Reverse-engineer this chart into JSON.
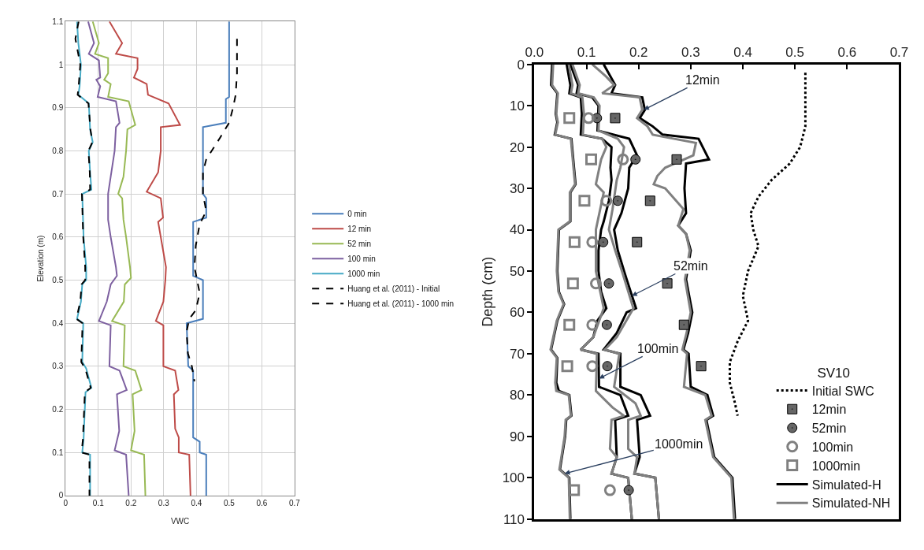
{
  "chart_data": [
    {
      "type": "line",
      "xlabel": "VWC",
      "ylabel": "Elevation (m)",
      "xlim": [
        0,
        0.7
      ],
      "xticks": [
        0,
        0.1,
        0.2,
        0.3,
        0.4,
        0.5,
        0.6,
        0.7
      ],
      "ylim": [
        0,
        1.1
      ],
      "yticks": [
        0,
        0.1,
        0.2,
        0.3,
        0.4,
        0.5,
        0.6,
        0.7,
        0.8,
        0.9,
        1,
        1.1
      ],
      "grid": true,
      "legend": "right",
      "series": [
        {
          "name": "0 min",
          "color": "#4a7ebb",
          "line_style": "solid",
          "x": [
            0.5,
            0.5,
            0.49,
            0.49,
            0.42,
            0.42,
            0.42,
            0.43,
            0.43,
            0.39,
            0.39,
            0.39,
            0.42,
            0.42,
            0.37,
            0.375,
            0.39,
            0.39,
            0.41,
            0.41,
            0.43,
            0.43
          ],
          "values": [
            1.1,
            0.925,
            0.92,
            0.865,
            0.855,
            0.8,
            0.7,
            0.69,
            0.645,
            0.635,
            0.52,
            0.51,
            0.5,
            0.41,
            0.4,
            0.3,
            0.29,
            0.135,
            0.125,
            0.1,
            0.095,
            0
          ]
        },
        {
          "name": "12 min",
          "color": "#be4b48",
          "line_style": "solid",
          "x": [
            0.134,
            0.173,
            0.154,
            0.22,
            0.22,
            0.209,
            0.248,
            0.252,
            0.315,
            0.35,
            0.291,
            0.291,
            0.283,
            0.248,
            0.291,
            0.298,
            0.283,
            0.307,
            0.305,
            0.299,
            0.276,
            0.299,
            0.299,
            0.335,
            0.345,
            0.331,
            0.335,
            0.346,
            0.346,
            0.378,
            0.382
          ],
          "values": [
            1.1,
            1.05,
            1.025,
            1.015,
            0.99,
            0.97,
            0.955,
            0.93,
            0.91,
            0.86,
            0.855,
            0.8,
            0.75,
            0.705,
            0.69,
            0.645,
            0.635,
            0.53,
            0.5,
            0.45,
            0.405,
            0.395,
            0.3,
            0.29,
            0.245,
            0.235,
            0.155,
            0.135,
            0.1,
            0.095,
            0
          ]
        },
        {
          "name": "52 min",
          "color": "#98b954",
          "line_style": "solid",
          "x": [
            0.083,
            0.102,
            0.09,
            0.13,
            0.13,
            0.118,
            0.138,
            0.13,
            0.193,
            0.213,
            0.189,
            0.185,
            0.177,
            0.161,
            0.173,
            0.177,
            0.185,
            0.197,
            0.2,
            0.181,
            0.178,
            0.142,
            0.181,
            0.177,
            0.213,
            0.232,
            0.205,
            0.211,
            0.2,
            0.24,
            0.244
          ],
          "values": [
            1.1,
            1.05,
            1.025,
            1.015,
            0.98,
            0.965,
            0.955,
            0.925,
            0.915,
            0.86,
            0.85,
            0.8,
            0.74,
            0.7,
            0.69,
            0.64,
            0.6,
            0.53,
            0.505,
            0.49,
            0.45,
            0.405,
            0.395,
            0.3,
            0.29,
            0.245,
            0.235,
            0.15,
            0.105,
            0.095,
            0
          ]
        },
        {
          "name": "100 min",
          "color": "#7d60a0",
          "line_style": "solid",
          "x": [
            0.069,
            0.087,
            0.071,
            0.102,
            0.106,
            0.094,
            0.106,
            0.098,
            0.154,
            0.165,
            0.154,
            0.15,
            0.138,
            0.13,
            0.13,
            0.138,
            0.154,
            0.157,
            0.138,
            0.126,
            0.102,
            0.138,
            0.134,
            0.165,
            0.187,
            0.157,
            0.164,
            0.15,
            0.185,
            0.193
          ],
          "values": [
            1.1,
            1.05,
            1.025,
            1.01,
            0.97,
            0.965,
            0.95,
            0.925,
            0.915,
            0.865,
            0.855,
            0.8,
            0.74,
            0.7,
            0.64,
            0.6,
            0.53,
            0.51,
            0.49,
            0.45,
            0.405,
            0.395,
            0.3,
            0.29,
            0.245,
            0.235,
            0.15,
            0.105,
            0.095,
            0
          ]
        },
        {
          "name": "1000 min",
          "color": "#46aac5",
          "line_style": "solid",
          "x": [
            0.035,
            0.039,
            0.047,
            0.043,
            0.039,
            0.071,
            0.075,
            0.083,
            0.071,
            0.075,
            0.079,
            0.051,
            0.055,
            0.063,
            0.063,
            0.051,
            0.047,
            0.035,
            0.054,
            0.051,
            0.063,
            0.079,
            0.061,
            0.055,
            0.051,
            0.075,
            0.075
          ],
          "values": [
            1.1,
            1.05,
            1.0,
            0.95,
            0.93,
            0.91,
            0.85,
            0.82,
            0.8,
            0.75,
            0.71,
            0.7,
            0.6,
            0.53,
            0.5,
            0.49,
            0.45,
            0.41,
            0.4,
            0.31,
            0.295,
            0.25,
            0.24,
            0.13,
            0.1,
            0.095,
            0
          ]
        },
        {
          "name": "Huang et al. (2011) - Initial",
          "color": "#000000",
          "line_style": "dashed",
          "x": [
            0.524,
            0.524,
            0.52,
            0.512,
            0.5,
            0.472,
            0.43,
            0.42,
            0.42,
            0.43,
            0.41,
            0.398,
            0.394,
            0.402,
            0.41,
            0.398,
            0.378,
            0.37,
            0.374,
            0.386,
            0.394
          ],
          "values": [
            1.06,
            0.98,
            0.93,
            0.9,
            0.865,
            0.83,
            0.78,
            0.75,
            0.7,
            0.66,
            0.63,
            0.58,
            0.53,
            0.5,
            0.47,
            0.43,
            0.41,
            0.38,
            0.33,
            0.3,
            0.265
          ]
        },
        {
          "name": "Huang et al. (2011) - 1000 min",
          "color": "#000000",
          "line_style": "dashed",
          "x": [
            0.04,
            0.03,
            0.045,
            0.04,
            0.037,
            0.07,
            0.076,
            0.082,
            0.07,
            0.074,
            0.075,
            0.05,
            0.054,
            0.06,
            0.06,
            0.049,
            0.045,
            0.033,
            0.052,
            0.048,
            0.06,
            0.077,
            0.059,
            0.053,
            0.049,
            0.073,
            0.073
          ],
          "values": [
            1.1,
            1.06,
            1.0,
            0.95,
            0.93,
            0.91,
            0.85,
            0.82,
            0.8,
            0.75,
            0.71,
            0.7,
            0.6,
            0.53,
            0.5,
            0.49,
            0.45,
            0.41,
            0.4,
            0.31,
            0.295,
            0.25,
            0.24,
            0.13,
            0.1,
            0.095,
            0
          ]
        }
      ]
    },
    {
      "type": "line",
      "ylabel": "Depth (cm)",
      "legend_title": "SV10",
      "xlim": [
        0,
        0.7
      ],
      "xticks": [
        {
          "value": 0,
          "label": "0.0"
        },
        0.1,
        0.2,
        0.3,
        0.4,
        0.5,
        0.6,
        0.7
      ],
      "ylim": [
        110,
        0
      ],
      "yticks": [
        0,
        10,
        20,
        30,
        40,
        50,
        60,
        70,
        80,
        90,
        100,
        110
      ],
      "legend": "bottom right",
      "annotations": [
        {
          "text": "12min",
          "x": 0.21,
          "y": 11
        },
        {
          "text": "52min",
          "x": 0.187,
          "y": 56
        },
        {
          "text": "100min",
          "x": 0.124,
          "y": 76
        },
        {
          "text": "1000min",
          "x": 0.058,
          "y": 99
        }
      ],
      "series": [
        {
          "name": "Initial SWC",
          "color": "#000000",
          "line_style": "dotted",
          "x": [
            0.52,
            0.52,
            0.51,
            0.49,
            0.455,
            0.43,
            0.415,
            0.42,
            0.43,
            0.41,
            0.4,
            0.41,
            0.39,
            0.375,
            0.375,
            0.385,
            0.39
          ],
          "values": [
            2,
            15,
            20,
            24,
            28,
            32,
            36,
            40,
            44,
            50,
            56,
            62,
            67,
            72,
            77,
            82,
            85
          ]
        },
        {
          "name": "12min",
          "type": "scatter",
          "color": "#666666",
          "marker": "square-dot",
          "x": [
            0.155,
            0.273,
            0.222,
            0.197,
            0.255,
            0.287,
            0.32
          ],
          "values": [
            13,
            23,
            33,
            43,
            53,
            63,
            73
          ]
        },
        {
          "name": "52min",
          "type": "scatter",
          "color": "#666666",
          "marker": "circle-dot",
          "x": [
            0.12,
            0.194,
            0.16,
            0.132,
            0.143,
            0.139,
            0.14,
            0.181
          ],
          "values": [
            13,
            23,
            33,
            43,
            53,
            63,
            73,
            103
          ]
        },
        {
          "name": "100min",
          "type": "scatter",
          "color": "#808080",
          "marker": "circle-open",
          "x": [
            0.104,
            0.17,
            0.138,
            0.111,
            0.118,
            0.111,
            0.111,
            0.145
          ],
          "values": [
            13,
            23,
            33,
            43,
            53,
            63,
            73,
            103
          ]
        },
        {
          "name": "1000min",
          "type": "scatter",
          "color": "#808080",
          "marker": "square-open",
          "x": [
            0.067,
            0.109,
            0.096,
            0.077,
            0.074,
            0.067,
            0.063,
            0.076
          ],
          "values": [
            13,
            23,
            33,
            43,
            53,
            63,
            73,
            103
          ]
        },
        {
          "name": "Simulated-H",
          "color": "#000000",
          "line_style": "solid",
          "x": [
            0.133,
            0.155,
            0.148,
            0.207,
            0.212,
            0.202,
            0.227,
            0.246,
            0.315,
            0.335,
            0.291,
            0.288,
            0.291,
            0.276,
            0.291,
            0.3,
            0.291,
            0.303,
            0.295,
            0.286,
            0.296,
            0.3,
            0.332,
            0.343,
            0.33,
            0.345,
            0.38,
            0.385
          ],
          "values": [
            0,
            5,
            7,
            8,
            11,
            13,
            15,
            17,
            18,
            23,
            24,
            30,
            36,
            39,
            41,
            45,
            52,
            60,
            65,
            69,
            70,
            78,
            80,
            85,
            86,
            95,
            100,
            110
          ]
        },
        {
          "color": "#000000",
          "line_style": "solid",
          "x": [
            0.069,
            0.084,
            0.081,
            0.111,
            0.123,
            0.121,
            0.182,
            0.197,
            0.182,
            0.18,
            0.167,
            0.153,
            0.16,
            0.172,
            0.177,
            0.195,
            0.177,
            0.158,
            0.133,
            0.165,
            0.165,
            0.204,
            0.222,
            0.197,
            0.202,
            0.192,
            0.232,
            0.239
          ],
          "values": [
            0,
            5,
            7,
            8,
            10,
            16,
            18,
            22,
            25,
            30,
            36,
            40,
            45,
            50,
            52,
            59,
            60,
            65,
            69,
            70,
            78,
            80,
            85,
            86,
            95,
            99,
            100,
            110
          ]
        },
        {
          "color": "#000000",
          "line_style": "solid",
          "x": [
            0.062,
            0.069,
            0.067,
            0.089,
            0.091,
            0.089,
            0.13,
            0.148,
            0.146,
            0.148,
            0.143,
            0.133,
            0.128,
            0.123,
            0.123,
            0.128,
            0.138,
            0.121,
            0.113,
            0.089,
            0.123,
            0.124,
            0.165,
            0.18,
            0.155,
            0.158,
            0.148,
            0.18,
            0.187
          ],
          "values": [
            0,
            5,
            7,
            8,
            12,
            17,
            18,
            20,
            25,
            28,
            33,
            38,
            40,
            45,
            50,
            55,
            59,
            62,
            66,
            69,
            70,
            78,
            80,
            85,
            86,
            95,
            99,
            100,
            110
          ]
        },
        {
          "color": "#000000",
          "line_style": "solid",
          "x": [
            0.034,
            0.032,
            0.044,
            0.041,
            0.044,
            0.039,
            0.071,
            0.076,
            0.079,
            0.069,
            0.069,
            0.047,
            0.044,
            0.047,
            0.057,
            0.044,
            0.032,
            0.044,
            0.042,
            0.047,
            0.067,
            0.071,
            0.061,
            0.059,
            0.049,
            0.067,
            0.069
          ],
          "values": [
            0,
            5,
            7,
            12,
            14,
            17,
            18,
            25,
            29,
            31,
            38,
            40,
            50,
            55,
            58,
            62,
            69,
            71,
            77,
            79,
            80,
            85,
            86,
            90,
            98,
            100,
            110
          ]
        },
        {
          "name": "Simulated-NH",
          "color": "#808080",
          "line_style": "solid",
          "x": [
            0.111,
            0.138,
            0.153,
            0.13,
            0.202,
            0.207,
            0.197,
            0.217,
            0.227,
            0.31,
            0.305,
            0.251,
            0.236,
            0.229,
            0.251,
            0.286,
            0.276,
            0.291,
            0.298,
            0.289,
            0.3,
            0.292,
            0.284,
            0.293,
            0.287,
            0.328,
            0.34,
            0.328,
            0.343,
            0.378,
            0.383
          ],
          "values": [
            0,
            3,
            5,
            7,
            8,
            11,
            13,
            15,
            17,
            19,
            22,
            25,
            27,
            29,
            30,
            35,
            39,
            41,
            45,
            52,
            60,
            65,
            69,
            70,
            78,
            80,
            85,
            86,
            95,
            100,
            110
          ]
        },
        {
          "color": "#808080",
          "line_style": "solid",
          "x": [
            0.073,
            0.087,
            0.084,
            0.114,
            0.125,
            0.123,
            0.16,
            0.172,
            0.165,
            0.158,
            0.15,
            0.143,
            0.155,
            0.168,
            0.19,
            0.158,
            0.135,
            0.163,
            0.153,
            0.194,
            0.204,
            0.18,
            0.18,
            0.197,
            0.192,
            0.232,
            0.239
          ],
          "values": [
            0,
            5,
            7,
            8,
            10,
            16,
            18,
            20,
            25,
            28,
            35,
            40,
            45,
            50,
            59,
            66,
            69,
            70,
            78,
            82,
            85,
            86,
            93,
            95,
            99,
            100,
            110
          ]
        },
        {
          "color": "#808080",
          "line_style": "solid",
          "x": [
            0.066,
            0.073,
            0.07,
            0.092,
            0.095,
            0.093,
            0.13,
            0.138,
            0.128,
            0.118,
            0.133,
            0.118,
            0.118,
            0.133,
            0.113,
            0.089,
            0.12,
            0.118,
            0.15,
            0.172,
            0.148,
            0.145,
            0.158,
            0.148,
            0.18,
            0.187
          ],
          "values": [
            0,
            5,
            7,
            8,
            12,
            17,
            18,
            20,
            23,
            29,
            31,
            40,
            50,
            59,
            66,
            69,
            70,
            79,
            83,
            85,
            86,
            93,
            95,
            99,
            100,
            110
          ]
        },
        {
          "color": "#808080",
          "line_style": "solid",
          "x": [
            0.036,
            0.034,
            0.045,
            0.042,
            0.045,
            0.04,
            0.07,
            0.075,
            0.078,
            0.068,
            0.068,
            0.046,
            0.043,
            0.046,
            0.056,
            0.043,
            0.031,
            0.043,
            0.04,
            0.042,
            0.066,
            0.07,
            0.06,
            0.058,
            0.048,
            0.066,
            0.068
          ],
          "values": [
            0,
            5,
            7,
            12,
            14,
            17,
            18,
            25,
            29,
            31,
            38,
            40,
            50,
            55,
            58,
            62,
            69,
            71,
            77,
            79,
            80,
            85,
            86,
            90,
            98,
            100,
            110
          ]
        }
      ]
    }
  ]
}
